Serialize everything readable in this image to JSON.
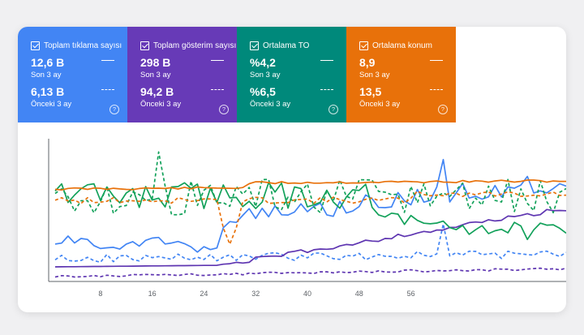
{
  "metrics": [
    {
      "label": "Toplam tıklama sayısı",
      "value": "12,6 B",
      "period": "Son 3 ay",
      "prev_value": "6,13 B",
      "prev_period": "Önceki 3 ay",
      "color": "#4285f4"
    },
    {
      "label": "Toplam gösterim sayısı",
      "value": "298 B",
      "period": "Son 3 ay",
      "prev_value": "94,2 B",
      "prev_period": "Önceki 3 ay",
      "color": "#673ab7"
    },
    {
      "label": "Ortalama TO",
      "value": "%4,2",
      "period": "Son 3 ay",
      "prev_value": "%6,5",
      "prev_period": "Önceki 3 ay",
      "color": "#00897b"
    },
    {
      "label": "Ortalama konum",
      "value": "8,9",
      "period": "Son 3 ay",
      "prev_value": "13,5",
      "prev_period": "Önceki 3 ay",
      "color": "#e8710a"
    }
  ],
  "help_symbol": "?",
  "colors": {
    "clicks": "#4285f4",
    "impressions": "#5e35b1",
    "ctr": "#1e8e3e",
    "position": "#e8710a",
    "ctr_line": "#12a15a"
  },
  "chart_data": {
    "type": "line",
    "x_ticks": [
      "8",
      "16",
      "24",
      "32",
      "40",
      "48",
      "56"
    ],
    "series_meta": [
      {
        "metric": "clicks",
        "period": "current"
      },
      {
        "metric": "clicks",
        "period": "previous"
      },
      {
        "metric": "impressions",
        "period": "current"
      },
      {
        "metric": "impressions",
        "period": "previous"
      },
      {
        "metric": "ctr",
        "period": "current"
      },
      {
        "metric": "ctr",
        "period": "previous"
      },
      {
        "metric": "position",
        "period": "current"
      },
      {
        "metric": "position",
        "period": "previous"
      }
    ]
  }
}
